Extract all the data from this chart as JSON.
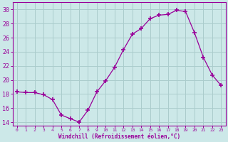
{
  "x": [
    0,
    1,
    2,
    3,
    4,
    5,
    6,
    7,
    8,
    9,
    10,
    11,
    12,
    13,
    14,
    15,
    16,
    17,
    18,
    19,
    20,
    21,
    22,
    23
  ],
  "y": [
    18.3,
    18.2,
    18.2,
    17.9,
    17.2,
    15.0,
    14.5,
    14.0,
    15.7,
    18.3,
    19.9,
    21.8,
    24.3,
    26.5,
    27.3,
    28.7,
    29.2,
    29.3,
    29.9,
    29.7,
    26.7,
    23.2,
    20.7,
    19.2
  ],
  "line_color": "#990099",
  "marker": "+",
  "marker_size": 4,
  "bg_color": "#cce8e8",
  "grid_color": "#aacccc",
  "xlabel": "Windchill (Refroidissement éolien,°C)",
  "xlabel_color": "#990099",
  "tick_color": "#990099",
  "ylim": [
    13.5,
    31.0
  ],
  "xlim": [
    -0.5,
    23.5
  ],
  "yticks": [
    14,
    16,
    18,
    20,
    22,
    24,
    26,
    28,
    30
  ],
  "xticks": [
    0,
    1,
    2,
    3,
    4,
    5,
    6,
    7,
    8,
    9,
    10,
    11,
    12,
    13,
    14,
    15,
    16,
    17,
    18,
    19,
    20,
    21,
    22,
    23
  ]
}
